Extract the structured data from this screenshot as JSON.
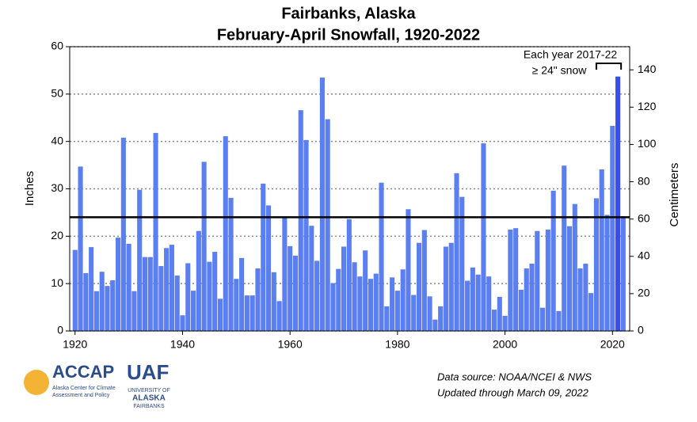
{
  "chart_data": {
    "type": "bar",
    "title": [
      "Fairbanks, Alaska",
      "February-April Snowfall, 1920-2022"
    ],
    "y_label": "Inches",
    "y2_label": "Centimeters",
    "color": "#5b7ff0",
    "highlight_color": "#3a4df0",
    "x": [
      1920,
      1921,
      1922,
      1923,
      1924,
      1925,
      1926,
      1927,
      1928,
      1929,
      1930,
      1931,
      1932,
      1933,
      1934,
      1935,
      1936,
      1937,
      1938,
      1939,
      1940,
      1941,
      1942,
      1943,
      1944,
      1945,
      1946,
      1947,
      1948,
      1949,
      1950,
      1951,
      1952,
      1953,
      1954,
      1955,
      1956,
      1957,
      1958,
      1959,
      1960,
      1961,
      1962,
      1963,
      1964,
      1965,
      1966,
      1967,
      1968,
      1969,
      1970,
      1971,
      1972,
      1973,
      1974,
      1975,
      1976,
      1977,
      1978,
      1979,
      1980,
      1981,
      1982,
      1983,
      1984,
      1985,
      1986,
      1987,
      1988,
      1989,
      1990,
      1991,
      1992,
      1993,
      1994,
      1995,
      1996,
      1997,
      1998,
      1999,
      2000,
      2001,
      2002,
      2003,
      2004,
      2005,
      2006,
      2007,
      2008,
      2009,
      2010,
      2011,
      2012,
      2013,
      2014,
      2015,
      2016,
      2017,
      2018,
      2019,
      2020,
      2021,
      2022
    ],
    "values": [
      17.1,
      34.7,
      12.2,
      17.7,
      8.4,
      12.5,
      9.5,
      10.7,
      19.7,
      40.8,
      18.4,
      8.4,
      29.8,
      15.6,
      15.6,
      41.8,
      13.7,
      17.5,
      18.2,
      11.7,
      3.3,
      14.3,
      8.5,
      21.1,
      35.7,
      14.6,
      16.7,
      6.8,
      41.1,
      28.1,
      11,
      15.4,
      7.5,
      7.5,
      13.2,
      31.1,
      26.5,
      12.4,
      6.3,
      23.9,
      17.9,
      15.9,
      46.6,
      40.3,
      22.2,
      14.8,
      53.5,
      44.7,
      10.1,
      13.1,
      17.8,
      23.6,
      14.5,
      11.5,
      17,
      11,
      12.1,
      31.3,
      5.2,
      11.3,
      8.5,
      13,
      25.7,
      7.6,
      18.6,
      21.3,
      7.3,
      2.4,
      5.2,
      17.8,
      18.6,
      33.3,
      28.3,
      10.6,
      13.4,
      11.9,
      39.6,
      11.5,
      4.5,
      7.2,
      3.2,
      21.4,
      21.7,
      8.7,
      13.2,
      14.2,
      21.1,
      4.9,
      21.4,
      29.6,
      4.2,
      34.9,
      22.1,
      26.8,
      13.2,
      14.2,
      8.0,
      28,
      34.1,
      24.5,
      43.3,
      53.7,
      24.2
    ],
    "xlim": [
      1919,
      2023.2
    ],
    "xticks": [
      1920,
      1940,
      1960,
      1980,
      2000,
      2020
    ],
    "ylim": [
      0,
      60
    ],
    "yticks": [
      0,
      10,
      20,
      30,
      40,
      50,
      60
    ],
    "y2lim": [
      0,
      152.4
    ],
    "y2ticks": [
      0,
      20,
      40,
      60,
      80,
      100,
      120,
      140
    ],
    "grid": true,
    "reference_line": 24,
    "annotation": {
      "lines": [
        "Each year 2017-22",
        "≥ 24\" snow"
      ],
      "from": 2017,
      "to": 2021.6
    },
    "source": [
      "Data source: NOAA/NCEI & NWS",
      "Updated through March 09, 2022"
    ]
  },
  "logos": {
    "accap": "ACCAP",
    "accap_sub": [
      "Alaska Center for Climate",
      "Assessment and Policy"
    ],
    "uaf": "UAF",
    "uaf_sub": [
      "UNIVERSITY OF",
      "ALASKA",
      "FAIRBANKS"
    ]
  }
}
